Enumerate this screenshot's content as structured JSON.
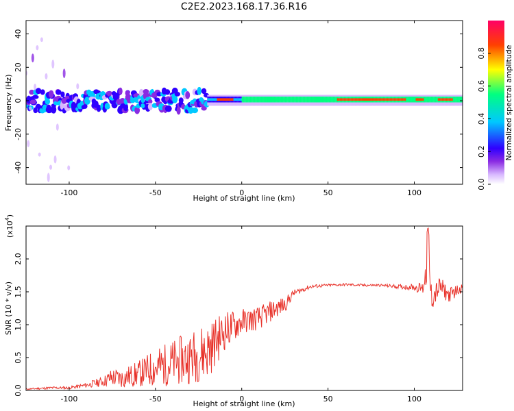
{
  "title": "C2E2.2023.168.17.36.R16",
  "chart_data": [
    {
      "type": "heatmap",
      "xlabel": "Height of straight line (km)",
      "ylabel": "Frequency (Hz)",
      "xlim": [
        -125,
        128
      ],
      "ylim": [
        -50,
        48
      ],
      "xticks": [
        -100,
        -50,
        0,
        50,
        100
      ],
      "xtick_labels": [
        "-100",
        "-50",
        "0",
        "50",
        "100"
      ],
      "yticks": [
        40,
        20,
        0,
        -20,
        -40
      ],
      "ytick_labels": [
        "40",
        "20",
        "0",
        "-20",
        "-40"
      ],
      "colorbar": {
        "label": "Normalized spectral amplitude",
        "range": [
          0,
          1
        ],
        "ticks": [
          0.0,
          0.2,
          0.4,
          0.6,
          0.8
        ],
        "tick_labels": [
          "0.0",
          "0.2",
          "0.4",
          "0.6",
          "0.8"
        ],
        "colormap": [
          "#ffffff",
          "#d8b8ff",
          "#8a2be2",
          "#2f00ff",
          "#00c8ff",
          "#00ff80",
          "#ffff00",
          "#ff4000",
          "#ff0066"
        ]
      },
      "description_bands": [
        {
          "x_from": -125,
          "x_to": -20,
          "y_center": 0,
          "half_width": 4,
          "peak": 0.35,
          "texture": "patchy"
        },
        {
          "x_from": -20,
          "x_to": 128,
          "y_center": 1,
          "half_width": 2.5,
          "peak": 0.8,
          "texture": "smooth"
        }
      ]
    },
    {
      "type": "line",
      "xlabel": "Height of straight line (km)",
      "ylabel": "SNR (10 * v/v)",
      "y_multiplier_label": "(x10^4)",
      "xlim": [
        -125,
        128
      ],
      "ylim": [
        0,
        2.5
      ],
      "xticks": [
        -100,
        -50,
        0,
        50,
        100
      ],
      "xtick_labels": [
        "-100",
        "-50",
        "0",
        "50",
        "100"
      ],
      "yticks": [
        0.0,
        0.5,
        1.0,
        1.5,
        2.0
      ],
      "ytick_labels": [
        "0.0",
        "0.5",
        "1.0",
        "1.5",
        "2.0"
      ],
      "series": [
        {
          "color": "#e8322a",
          "x": [
            -125,
            -110,
            -100,
            -90,
            -80,
            -75,
            -70,
            -60,
            -50,
            -40,
            -30,
            -20,
            -10,
            0,
            10,
            20,
            25,
            30,
            40,
            50,
            60,
            70,
            80,
            90,
            100,
            105,
            108,
            110,
            115,
            120,
            128
          ],
          "y": [
            0.02,
            0.04,
            0.04,
            0.08,
            0.14,
            0.2,
            0.18,
            0.25,
            0.35,
            0.42,
            0.5,
            0.6,
            0.9,
            1.05,
            1.1,
            1.25,
            1.3,
            1.48,
            1.58,
            1.6,
            1.61,
            1.6,
            1.6,
            1.58,
            1.57,
            1.55,
            2.0,
            1.4,
            1.58,
            1.45,
            1.57
          ],
          "noise_amplitude": [
            0.01,
            0.02,
            0.02,
            0.04,
            0.08,
            0.15,
            0.15,
            0.2,
            0.3,
            0.35,
            0.4,
            0.45,
            0.3,
            0.2,
            0.18,
            0.15,
            0.12,
            0.05,
            0.03,
            0.02,
            0.02,
            0.02,
            0.02,
            0.03,
            0.05,
            0.1,
            0.35,
            0.2,
            0.15,
            0.12,
            0.06
          ]
        }
      ]
    }
  ]
}
